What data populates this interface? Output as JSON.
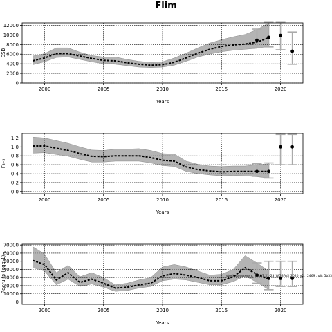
{
  "title": "Flim",
  "panels": [
    {
      "ylabel": "SSB",
      "xlabel": "Years",
      "ylim": [
        0,
        12500
      ],
      "yticks": [
        0,
        2000,
        4000,
        6000,
        8000,
        10000,
        12000
      ],
      "yticklabels": [
        "0",
        "2000",
        "4000",
        "6000",
        "8000",
        "10000",
        "12000"
      ],
      "years": [
        1999,
        2000,
        2001,
        2002,
        2003,
        2004,
        2005,
        2006,
        2007,
        2008,
        2009,
        2010,
        2011,
        2012,
        2013,
        2014,
        2015,
        2016,
        2017,
        2018,
        2019
      ],
      "median": [
        4600,
        5200,
        6100,
        6100,
        5600,
        5100,
        4700,
        4600,
        4200,
        3900,
        3700,
        3800,
        4300,
        5200,
        6200,
        7000,
        7600,
        7900,
        8100,
        8500,
        9400
      ],
      "lower": [
        3800,
        4400,
        5300,
        5400,
        4900,
        4400,
        4000,
        3900,
        3600,
        3300,
        3200,
        3300,
        3700,
        4500,
        5400,
        6000,
        6500,
        6800,
        7000,
        7200,
        7600
      ],
      "upper": [
        5600,
        6100,
        7300,
        7300,
        6400,
        5700,
        5400,
        5400,
        4900,
        4500,
        4300,
        4400,
        5200,
        6200,
        7300,
        8300,
        9000,
        9600,
        10100,
        11100,
        12500
      ],
      "points": [
        {
          "x": 2018,
          "y": 8900,
          "lo": 7300,
          "hi": 11200
        },
        {
          "x": 2019,
          "y": 9500,
          "lo": 7500,
          "hi": 12600
        },
        {
          "x": 2020,
          "y": 9900,
          "lo": 6900,
          "hi": 12600
        },
        {
          "x": 2021,
          "y": 6600,
          "lo": 3900,
          "hi": 10600
        }
      ],
      "annotation": ""
    },
    {
      "ylabel": "F₃₋₅",
      "xlabel": "Years",
      "ylim": [
        -0.05,
        1.3
      ],
      "yticks": [
        0,
        0.2,
        0.4,
        0.6,
        0.8,
        1.0,
        1.2
      ],
      "yticklabels": [
        "0.0",
        "0.2",
        "0.4",
        "0.6",
        "0.8",
        "1.0",
        "1.2"
      ],
      "years": [
        1999,
        2000,
        2001,
        2002,
        2003,
        2004,
        2005,
        2006,
        2007,
        2008,
        2009,
        2010,
        2011,
        2012,
        2013,
        2014,
        2015,
        2016,
        2017,
        2018,
        2019
      ],
      "median": [
        1.02,
        1.02,
        0.97,
        0.92,
        0.85,
        0.79,
        0.78,
        0.8,
        0.8,
        0.8,
        0.76,
        0.7,
        0.68,
        0.55,
        0.49,
        0.46,
        0.44,
        0.45,
        0.45,
        0.45,
        0.45
      ],
      "lower": [
        0.86,
        0.87,
        0.83,
        0.79,
        0.72,
        0.66,
        0.66,
        0.68,
        0.68,
        0.68,
        0.64,
        0.58,
        0.56,
        0.45,
        0.4,
        0.37,
        0.35,
        0.36,
        0.35,
        0.33,
        0.3
      ],
      "upper": [
        1.22,
        1.2,
        1.14,
        1.08,
        1.0,
        0.93,
        0.92,
        0.95,
        0.95,
        0.96,
        0.92,
        0.85,
        0.84,
        0.68,
        0.61,
        0.57,
        0.56,
        0.57,
        0.57,
        0.6,
        0.62
      ],
      "points": [
        {
          "x": 2018,
          "y": 0.45,
          "lo": 0.34,
          "hi": 0.62
        },
        {
          "x": 2019,
          "y": 0.45,
          "lo": 0.3,
          "hi": 0.64
        },
        {
          "x": 2020,
          "y": 1.0,
          "lo": 0.6,
          "hi": 1.28
        },
        {
          "x": 2021,
          "y": 1.0,
          "lo": 0.6,
          "hi": 1.28
        }
      ],
      "annotation": ""
    },
    {
      "ylabel": "Recruits (age 1)",
      "xlabel": "Years",
      "ylim": [
        -3000,
        71000
      ],
      "yticks": [
        0,
        10000,
        20000,
        30000,
        40000,
        50000,
        60000,
        70000
      ],
      "yticklabels": [
        "0",
        "10000",
        "20000",
        "30000",
        "40000",
        "50000",
        "60000",
        "70000"
      ],
      "years": [
        1999,
        2000,
        2001,
        2002,
        2003,
        2004,
        2005,
        2006,
        2007,
        2008,
        2009,
        2010,
        2011,
        2012,
        2013,
        2014,
        2015,
        2016,
        2017,
        2018,
        2019
      ],
      "median": [
        51000,
        46000,
        27000,
        36000,
        24000,
        28000,
        23000,
        17000,
        18000,
        21000,
        23000,
        32000,
        35000,
        33000,
        30000,
        26000,
        26000,
        31000,
        42000,
        34000,
        28000
      ],
      "lower": [
        42000,
        38000,
        21000,
        28000,
        19000,
        22000,
        18000,
        13000,
        14000,
        17000,
        19000,
        26000,
        28000,
        27000,
        24000,
        21000,
        21000,
        25000,
        32000,
        24000,
        15000
      ],
      "upper": [
        68000,
        59000,
        36000,
        45000,
        31000,
        36000,
        30000,
        21000,
        23000,
        27000,
        30000,
        43000,
        46000,
        43000,
        38000,
        33000,
        34000,
        40000,
        57000,
        48000,
        38000
      ],
      "points": [
        {
          "x": 2018,
          "y": 33000,
          "lo": 23000,
          "hi": 48000
        },
        {
          "x": 2019,
          "y": 29000,
          "lo": 15000,
          "hi": 50000
        },
        {
          "x": 2020,
          "y": 29000,
          "lo": 19000,
          "hi": 50000
        },
        {
          "x": 2021,
          "y": 29000,
          "lo": 19000,
          "hi": 50000
        }
      ],
      "annotation": "stockassessment_ple.27.21-23_WGBFAS_2020_v2, r2469 , git: 5b33"
    }
  ],
  "xlim": [
    1998.1,
    2021.9
  ],
  "xticks": [
    2000,
    2005,
    2010,
    2015,
    2020
  ],
  "xticklabels": [
    "2000",
    "2005",
    "2010",
    "2015",
    "2020"
  ],
  "colors": {
    "band": "#b4b4b4",
    "band_edge": "#8c8c8c",
    "line": "#000000",
    "errorbar": "#aaaaaa",
    "grid": "#000000"
  }
}
